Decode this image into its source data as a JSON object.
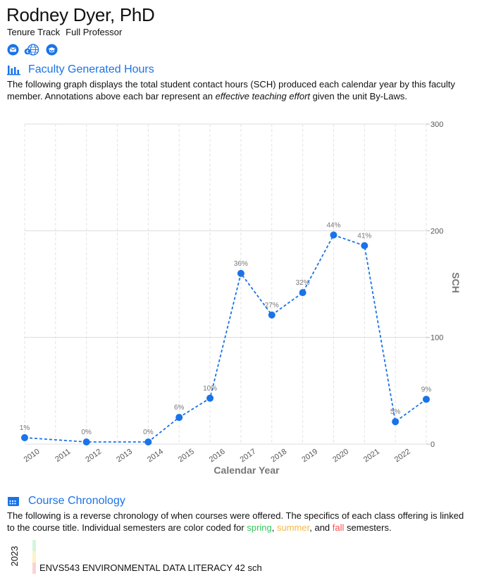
{
  "faculty": {
    "name": "Rodney Dyer, PhD",
    "track": "Tenure Track",
    "rank": "Full Professor"
  },
  "icons": [
    "envelope-icon",
    "globe-icon",
    "graduation-cap-icon"
  ],
  "hours_section": {
    "title": "Faculty Generated Hours",
    "description_1": "The following graph displays the total student contact hours (SCH) produced each calendar year by this faculty member.  Annotations above each bar represent an ",
    "description_em": "effective teaching effort",
    "description_2": " given the unit By-Laws."
  },
  "chart_data": {
    "type": "line",
    "xlabel": "Calendar Year",
    "ylabel": "SCH",
    "ylim": [
      0,
      300
    ],
    "yticks": [
      0,
      100,
      200,
      300
    ],
    "x": [
      "2010",
      "2011",
      "2012",
      "2013",
      "2014",
      "2015",
      "2016",
      "2017",
      "2018",
      "2019",
      "2020",
      "2021",
      "2022"
    ],
    "series": [
      {
        "values": [
          6,
          2,
          2,
          25,
          43,
          160,
          121,
          142,
          196,
          186,
          21,
          42
        ],
        "x": [
          "2010",
          "2012",
          "2014",
          "2015",
          "2016",
          "2017",
          "2018",
          "2019",
          "2020",
          "2021",
          "2022",
          "2023"
        ],
        "annotations": [
          "1%",
          "0%",
          "0%",
          "6%",
          "10%",
          "36%",
          "27%",
          "32%",
          "44%",
          "41%",
          "5%",
          "9%"
        ]
      }
    ],
    "color": "#1a73e8",
    "line_style": "dashed",
    "grid": true,
    "y_axis_side": "right"
  },
  "chronology_section": {
    "title": "Course Chronology",
    "description_1": "The following is a reverse chronology of when courses were offered.  The specifics of each class offering is linked to the course title.  Individual semesters are color coded for ",
    "spring": "spring",
    "sep_1": ", ",
    "summer": "summer",
    "sep_2": ", and ",
    "fall": "fall",
    "description_2": " semesters.",
    "colors": {
      "spring": "#d4f5dc",
      "summer": "#fdf3c8",
      "fall": "#fbd3d3"
    }
  },
  "chronology": [
    {
      "year": "2023",
      "course": "ENVS543  ENVIRONMENTAL DATA LITERACY  42 sch"
    }
  ]
}
